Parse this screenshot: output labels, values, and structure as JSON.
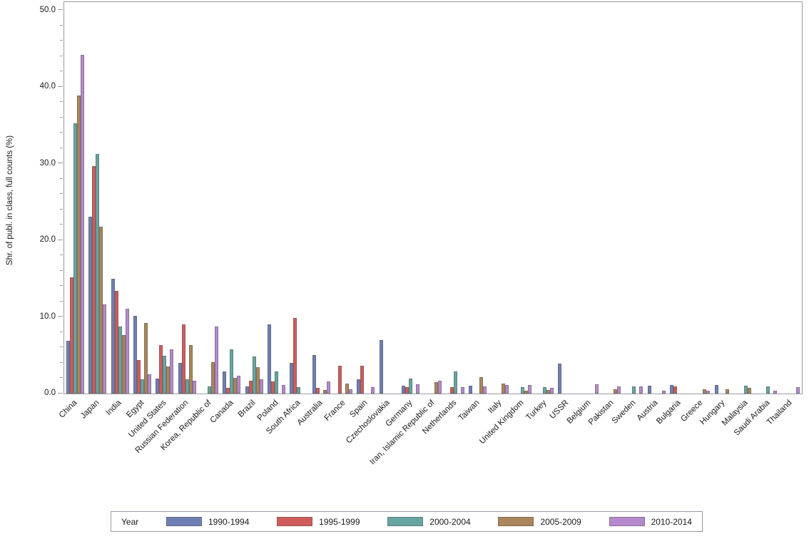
{
  "y_axis": {
    "title": "Shr. of publ. in class, full counts (%)",
    "tick_values": [
      0,
      10,
      20,
      30,
      40,
      50
    ],
    "tick_labels": [
      "0.0",
      "10.0",
      "20.0",
      "30.0",
      "40.0",
      "50.0"
    ],
    "minor_tick_step": 2,
    "axis_max": 51.07
  },
  "legend": {
    "title": "Year",
    "position": "bottom"
  },
  "colors": {
    "axis": "#969CA4",
    "series_1990_1994": "#6F7EB3",
    "series_1995_1999": "#D05B5B",
    "series_2000_2004": "#66A5A0",
    "series_2005_2009": "#A9865B",
    "series_2010_2014": "#B689CD"
  },
  "chart_data": {
    "type": "bar",
    "title": "",
    "xlabel": "",
    "ylabel": "Shr. of publ. in class, full counts (%)",
    "ylim": [
      0,
      51
    ],
    "grid": false,
    "legend_position": "bottom",
    "categories": [
      "China",
      "Japan",
      "India",
      "Egypt",
      "United States",
      "Russian Federation",
      "Korea, Republic of",
      "Canada",
      "Brazil",
      "Poland",
      "South Africa",
      "Australia",
      "France",
      "Spain",
      "Czechoslovakia",
      "Germany",
      "Iran, Islamic Republic of",
      "Netherlands",
      "Taiwan",
      "Italy",
      "United Kingdom",
      "Turkey",
      "USSR",
      "Belgium",
      "Pakistan",
      "Sweden",
      "Austria",
      "Bulgaria",
      "Greece",
      "Hungary",
      "Malaysia",
      "Saudi Arabia",
      "Thailand"
    ],
    "series": [
      {
        "name": "1990-1994",
        "color": "#6F7EB3",
        "values": [
          6.9,
          23.1,
          15.0,
          10.1,
          2.0,
          4.0,
          0,
          2.9,
          0.9,
          9.0,
          4.0,
          5.0,
          0,
          1.9,
          7.0,
          1.0,
          0,
          0,
          1.05,
          0,
          0,
          0,
          3.9,
          0,
          0,
          0,
          1.05,
          1.15,
          0,
          1.15,
          0,
          0,
          0
        ]
      },
      {
        "name": "1995-1999",
        "color": "#D05B5B",
        "values": [
          15.2,
          29.7,
          13.4,
          4.4,
          6.3,
          9.0,
          0,
          0.75,
          1.65,
          1.6,
          9.9,
          0.7,
          3.6,
          3.6,
          0,
          0.8,
          0,
          0.8,
          0,
          0,
          0,
          0,
          0,
          0,
          0,
          0,
          0,
          0.95,
          0,
          0,
          0,
          0,
          0
        ]
      },
      {
        "name": "2000-2004",
        "color": "#66A5A0",
        "values": [
          35.3,
          31.3,
          8.7,
          1.9,
          4.9,
          1.9,
          0.9,
          5.8,
          4.8,
          2.9,
          0.8,
          0,
          0,
          0,
          0,
          2.0,
          0,
          2.9,
          0,
          0,
          0.8,
          0.8,
          0,
          0,
          0,
          0.9,
          0,
          0,
          0,
          0,
          1.0,
          0.9,
          0
        ]
      },
      {
        "name": "2005-2009",
        "color": "#A9865B",
        "values": [
          38.9,
          21.8,
          7.6,
          9.2,
          3.5,
          6.3,
          4.1,
          2.05,
          3.4,
          0,
          0,
          0.5,
          1.3,
          0,
          0,
          0,
          1.45,
          0,
          2.15,
          1.3,
          0.4,
          0.5,
          0,
          0,
          0.55,
          0,
          0,
          0,
          0.6,
          0.6,
          0.7,
          0,
          0
        ]
      },
      {
        "name": "2010-2014",
        "color": "#B689CD",
        "values": [
          44.2,
          11.6,
          11.1,
          2.5,
          5.8,
          1.65,
          8.7,
          2.35,
          1.9,
          1.1,
          0,
          1.55,
          0.6,
          0.85,
          0,
          1.25,
          1.7,
          0.85,
          0.9,
          1.1,
          1.1,
          0.7,
          0,
          1.2,
          0.9,
          0.9,
          0.35,
          0,
          0.4,
          0,
          0,
          0.35,
          0.85
        ]
      }
    ]
  }
}
